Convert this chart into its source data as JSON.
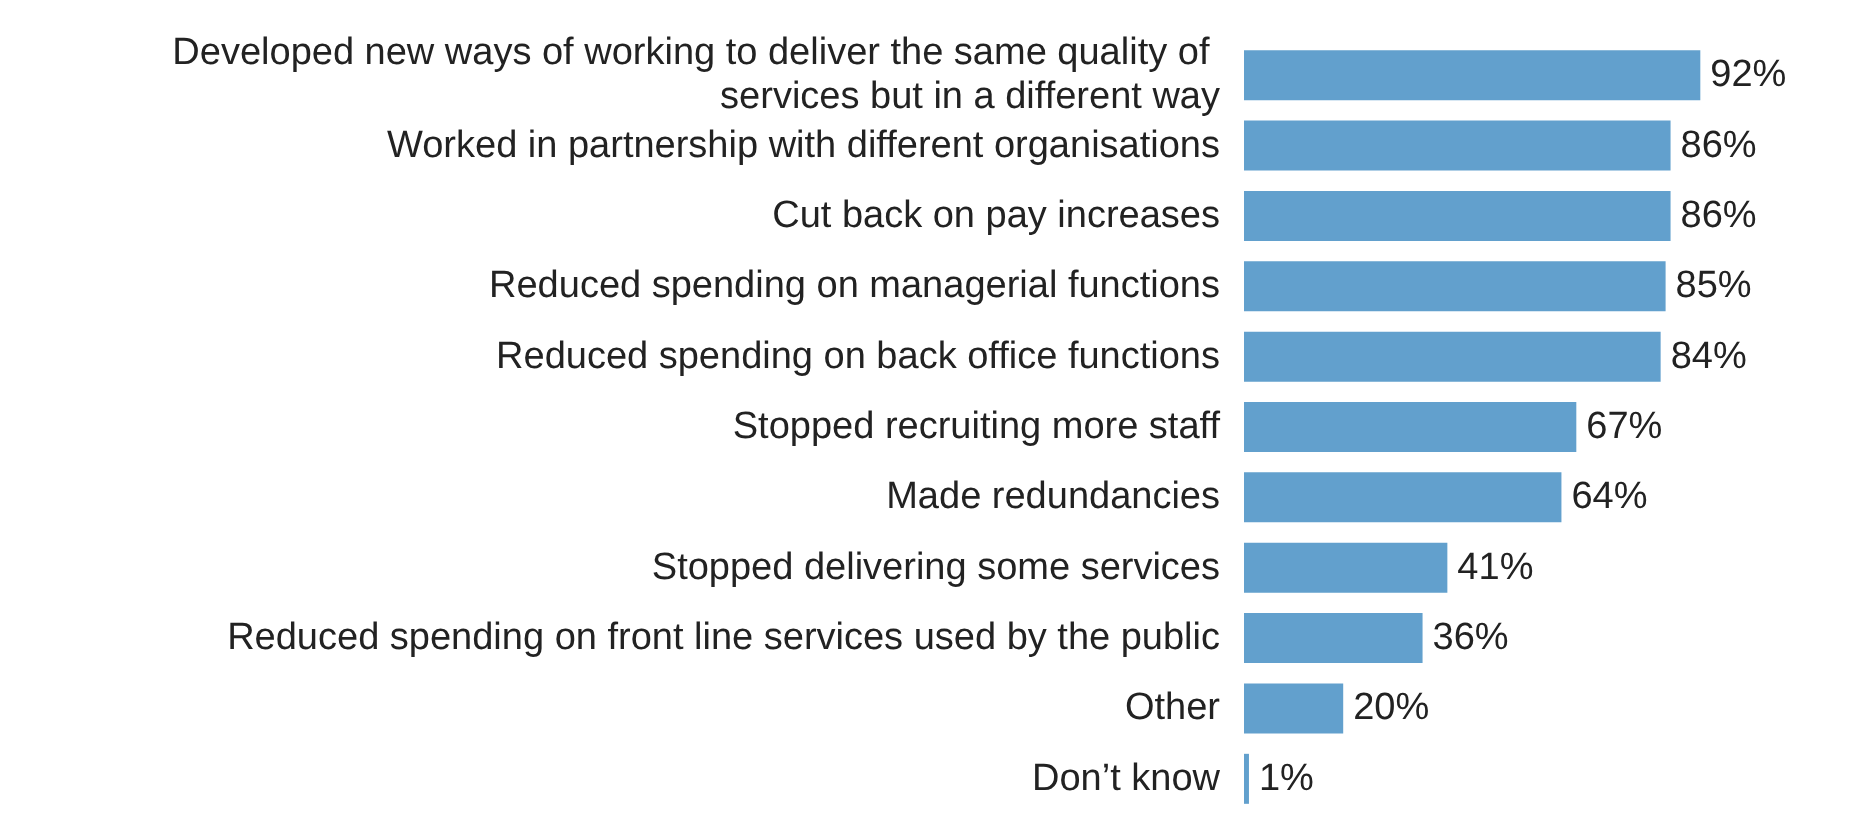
{
  "chart_data": {
    "type": "bar",
    "orientation": "horizontal",
    "categories": [
      "Developed new ways of working to deliver the same quality of services but in a different way",
      "Worked in partnership with different organisations",
      "Cut back on pay increases",
      "Reduced spending on managerial functions",
      "Reduced spending on back office functions",
      "Stopped recruiting more staff",
      "Made redundancies",
      "Stopped delivering some services",
      "Reduced spending on front line services used by the public",
      "Other",
      "Don’t know"
    ],
    "series": [
      {
        "color": "#62a0cd",
        "values": [
          92,
          86,
          86,
          85,
          84,
          67,
          64,
          41,
          36,
          20,
          1
        ],
        "value_labels": [
          "92%",
          "86%",
          "86%",
          "85%",
          "84%",
          "67%",
          "64%",
          "41%",
          "36%",
          "20%",
          "1%"
        ]
      }
    ]
  }
}
